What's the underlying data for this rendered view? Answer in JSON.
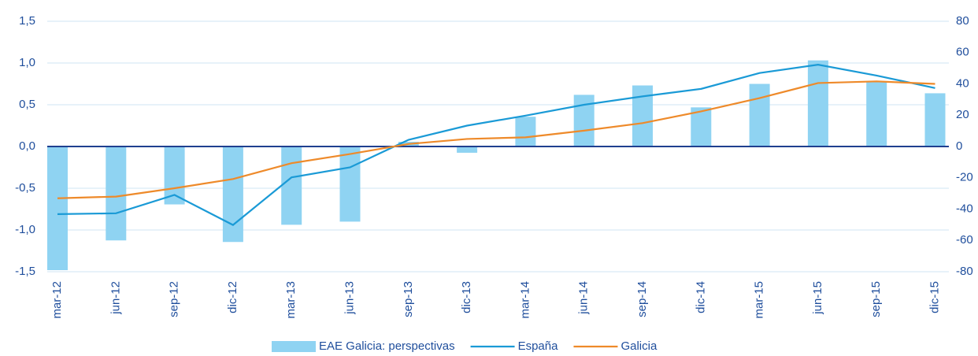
{
  "chart_data": {
    "type": "bar",
    "categories": [
      "mar-12",
      "jun-12",
      "sep-12",
      "dic-12",
      "mar-13",
      "jun-13",
      "sep-13",
      "dic-13",
      "mar-14",
      "jun-14",
      "sep-14",
      "dic-14",
      "mar-15",
      "jun-15",
      "sep-15",
      "dic-15"
    ],
    "series": [
      {
        "name": "EAE Galicia: perspectivas",
        "type": "bar",
        "axis": "y2",
        "color": "#8fd3f2",
        "values": [
          -79,
          -60,
          -37,
          -61,
          -50,
          -48,
          3,
          -4,
          19,
          33,
          39,
          25,
          40,
          55,
          41,
          34
        ]
      },
      {
        "name": "España",
        "type": "line",
        "color": "#1a9ad6",
        "values": [
          -0.81,
          -0.8,
          -0.58,
          -0.94,
          -0.37,
          -0.25,
          0.08,
          0.25,
          0.37,
          0.5,
          0.6,
          0.69,
          0.88,
          0.98,
          0.85,
          0.7
        ]
      },
      {
        "name": "Galicia",
        "type": "line",
        "color": "#ee8a2a",
        "values": [
          -0.62,
          -0.6,
          -0.5,
          -0.39,
          -0.2,
          -0.09,
          0.03,
          0.09,
          0.11,
          0.19,
          0.28,
          0.42,
          0.58,
          0.76,
          0.78,
          0.75
        ]
      }
    ],
    "ylim": [
      -1.5,
      1.5
    ],
    "yticks": [
      {
        "value": -1.5,
        "label": "-1,5"
      },
      {
        "value": -1.0,
        "label": "-1,0"
      },
      {
        "value": -0.5,
        "label": "-0,5"
      },
      {
        "value": 0,
        "label": "0,0"
      },
      {
        "value": 0.5,
        "label": "0,5"
      },
      {
        "value": 1.0,
        "label": "1,0"
      },
      {
        "value": 1.5,
        "label": "1,5"
      }
    ],
    "y2lim": [
      -80,
      80
    ],
    "y2ticks": [
      -80,
      -60,
      -40,
      -20,
      0,
      20,
      40,
      60,
      80
    ],
    "grid": true
  }
}
